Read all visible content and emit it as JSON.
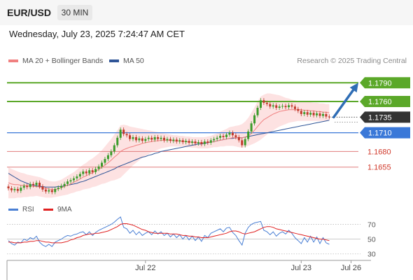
{
  "header": {
    "symbol": "EUR/USD",
    "timeframe": "30 MIN",
    "datetime": "Wednesday, July 23, 2025 7:24:47 AM CET"
  },
  "legend": {
    "items": [
      {
        "label": "MA 20 + Bollinger Bands",
        "color": "#f08080"
      },
      {
        "label": "MA 50",
        "color": "#2f5597"
      }
    ],
    "copyright": "Research © 2025 Trading Central"
  },
  "rsi_legend": {
    "items": [
      {
        "label": "RSI",
        "color": "#4a7fd4"
      },
      {
        "label": "9MA",
        "color": "#e02020"
      }
    ]
  },
  "colors": {
    "resistance": "#5ba829",
    "pivot": "#3a78d8",
    "support": "#e07b7b",
    "current": "#333333",
    "candle_up": "#3b9b2a",
    "candle_down": "#c0392b",
    "band_fill": "#fde2e2",
    "arrow": "#2f6db5"
  },
  "chart_data": [
    {
      "type": "candlestick",
      "y_range": [
        1.1602,
        1.1815
      ],
      "x_labels": [
        {
          "label": "Jul 22",
          "index": 44
        },
        {
          "label": "Jul 23",
          "index": 94
        },
        {
          "label": "Jul 26",
          "index": 110
        }
      ],
      "levels": [
        {
          "value": 1.179,
          "label": "1.1790",
          "kind": "resistance"
        },
        {
          "value": 1.176,
          "label": "1.1760",
          "kind": "resistance"
        },
        {
          "value": 1.1735,
          "label": "1.1735",
          "kind": "current"
        },
        {
          "value": 1.171,
          "label": "1.1710",
          "kind": "pivot"
        },
        {
          "value": 1.168,
          "label": "1.1680",
          "kind": "support"
        },
        {
          "value": 1.1655,
          "label": "1.1655",
          "kind": "support"
        }
      ],
      "close": [
        1.1621,
        1.1618,
        1.162,
        1.1617,
        1.1622,
        1.1625,
        1.1623,
        1.1628,
        1.1626,
        1.163,
        1.1624,
        1.1619,
        1.1616,
        1.1618,
        1.1615,
        1.162,
        1.1622,
        1.1625,
        1.1628,
        1.1632,
        1.1634,
        1.1637,
        1.164,
        1.1644,
        1.1648,
        1.1645,
        1.165,
        1.1647,
        1.1652,
        1.1656,
        1.1662,
        1.1668,
        1.1674,
        1.168,
        1.169,
        1.1702,
        1.1715,
        1.1708,
        1.1706,
        1.17,
        1.1703,
        1.1698,
        1.1701,
        1.1697,
        1.17,
        1.1702,
        1.1699,
        1.1703,
        1.17,
        1.1702,
        1.1698,
        1.17,
        1.1697,
        1.1699,
        1.1696,
        1.1698,
        1.1695,
        1.1697,
        1.1694,
        1.1696,
        1.1693,
        1.1695,
        1.1692,
        1.1696,
        1.1694,
        1.1698,
        1.17,
        1.1702,
        1.1705,
        1.1703,
        1.1707,
        1.171,
        1.1706,
        1.1703,
        1.1698,
        1.169,
        1.17,
        1.1712,
        1.1725,
        1.1738,
        1.175,
        1.1762,
        1.1758,
        1.1756,
        1.1752,
        1.1754,
        1.175,
        1.1752,
        1.1753,
        1.1751,
        1.1754,
        1.1752,
        1.1748,
        1.1745,
        1.174,
        1.1743,
        1.1739,
        1.1742,
        1.1738,
        1.1741,
        1.1737,
        1.174,
        1.1736,
        1.1735
      ],
      "ma50": [
        1.1645,
        1.1642,
        1.1639,
        1.1636,
        1.1633,
        1.1631,
        1.1629,
        1.1627,
        1.1626,
        1.1625,
        1.1624,
        1.1624,
        1.1623,
        1.1623,
        1.1623,
        1.1623,
        1.1624,
        1.1624,
        1.1625,
        1.1626,
        1.1627,
        1.1628,
        1.1629,
        1.1631,
        1.1632,
        1.1634,
        1.1636,
        1.1638,
        1.164,
        1.1642,
        1.1644,
        1.1646,
        1.1648,
        1.165,
        1.1652,
        1.1655,
        1.1657,
        1.1659,
        1.1661,
        1.1663,
        1.1665,
        1.1667,
        1.1669,
        1.1671,
        1.1672,
        1.1674,
        1.1675,
        1.1677,
        1.1678,
        1.168,
        1.1681,
        1.1682,
        1.1683,
        1.1684,
        1.1685,
        1.1686,
        1.1687,
        1.1688,
        1.1689,
        1.169,
        1.1691,
        1.1692,
        1.1692,
        1.1693,
        1.1694,
        1.1695,
        1.1696,
        1.1697,
        1.1698,
        1.1699,
        1.17,
        1.1701,
        1.1701,
        1.1702,
        1.1702,
        1.1702,
        1.1703,
        1.1704,
        1.1705,
        1.1706,
        1.1707,
        1.1708,
        1.1709,
        1.171,
        1.1711,
        1.1712,
        1.1713,
        1.1714,
        1.1715,
        1.1716,
        1.1717,
        1.1718,
        1.1719,
        1.172,
        1.1721,
        1.1722,
        1.1723,
        1.1724,
        1.1725,
        1.1726,
        1.1727,
        1.1728,
        1.1729,
        1.173
      ],
      "bollinger_upper": [
        1.1655,
        1.1652,
        1.165,
        1.1648,
        1.1646,
        1.1645,
        1.1643,
        1.1642,
        1.1641,
        1.164,
        1.1639,
        1.1637,
        1.1635,
        1.1633,
        1.1632,
        1.1632,
        1.1633,
        1.1635,
        1.1638,
        1.1641,
        1.1644,
        1.1647,
        1.1651,
        1.1655,
        1.1659,
        1.1662,
        1.1666,
        1.1669,
        1.1673,
        1.1677,
        1.1682,
        1.1688,
        1.1694,
        1.17,
        1.1707,
        1.1714,
        1.1722,
        1.1723,
        1.1722,
        1.172,
        1.1719,
        1.1718,
        1.1717,
        1.1716,
        1.1715,
        1.1714,
        1.1713,
        1.1712,
        1.1711,
        1.171,
        1.1709,
        1.1708,
        1.1707,
        1.1706,
        1.1706,
        1.1705,
        1.1705,
        1.1704,
        1.1704,
        1.1703,
        1.1703,
        1.1703,
        1.1703,
        1.1703,
        1.1704,
        1.1705,
        1.1707,
        1.1709,
        1.1712,
        1.1714,
        1.1716,
        1.1719,
        1.172,
        1.1721,
        1.1722,
        1.1724,
        1.1728,
        1.1734,
        1.1742,
        1.1751,
        1.176,
        1.1768,
        1.1771,
        1.1773,
        1.1773,
        1.1772,
        1.1771,
        1.177,
        1.1768,
        1.1766,
        1.1765,
        1.1763,
        1.1762,
        1.1761,
        1.176,
        1.176,
        1.1759,
        1.1759,
        1.1758,
        1.1758,
        1.1757,
        1.1757,
        1.1756,
        1.1756
      ],
      "bollinger_lower": [
        1.1605,
        1.1605,
        1.1605,
        1.1606,
        1.1606,
        1.1607,
        1.1607,
        1.1608,
        1.1608,
        1.1609,
        1.1608,
        1.1607,
        1.1606,
        1.1606,
        1.1606,
        1.1607,
        1.1608,
        1.1609,
        1.161,
        1.1611,
        1.1613,
        1.1614,
        1.1616,
        1.1617,
        1.1619,
        1.162,
        1.1621,
        1.1623,
        1.1624,
        1.1626,
        1.1628,
        1.1629,
        1.1631,
        1.1633,
        1.1634,
        1.1636,
        1.1638,
        1.1643,
        1.1648,
        1.1653,
        1.1658,
        1.1662,
        1.1666,
        1.167,
        1.1673,
        1.1676,
        1.1679,
        1.1681,
        1.1683,
        1.1685,
        1.1686,
        1.1687,
        1.1688,
        1.1688,
        1.1688,
        1.1688,
        1.1688,
        1.1687,
        1.1687,
        1.1686,
        1.1686,
        1.1685,
        1.1685,
        1.1685,
        1.1685,
        1.1686,
        1.1687,
        1.1687,
        1.1688,
        1.1688,
        1.1689,
        1.1689,
        1.1689,
        1.1688,
        1.1687,
        1.1686,
        1.1687,
        1.1689,
        1.1691,
        1.1693,
        1.1696,
        1.1699,
        1.1703,
        1.1707,
        1.1711,
        1.1714,
        1.1717,
        1.172,
        1.1722,
        1.1724,
        1.1726,
        1.1727,
        1.1728,
        1.1729,
        1.1729,
        1.1729,
        1.1729,
        1.1729,
        1.1729,
        1.1729,
        1.1729,
        1.1729,
        1.1729,
        1.1729
      ],
      "ma20": [
        1.163,
        1.1628,
        1.1627,
        1.1627,
        1.1626,
        1.1626,
        1.1625,
        1.1625,
        1.1624,
        1.1624,
        1.1623,
        1.1622,
        1.1621,
        1.162,
        1.1619,
        1.1619,
        1.162,
        1.1622,
        1.1624,
        1.1626,
        1.1628,
        1.1631,
        1.1633,
        1.1636,
        1.1639,
        1.1641,
        1.1644,
        1.1646,
        1.1649,
        1.1651,
        1.1655,
        1.1658,
        1.1662,
        1.1666,
        1.1671,
        1.1675,
        1.168,
        1.1683,
        1.1685,
        1.1687,
        1.1688,
        1.169,
        1.1691,
        1.1693,
        1.1694,
        1.1695,
        1.1696,
        1.1697,
        1.1697,
        1.1698,
        1.1698,
        1.1698,
        1.1698,
        1.1697,
        1.1697,
        1.1697,
        1.1696,
        1.1696,
        1.1695,
        1.1695,
        1.1694,
        1.1694,
        1.1694,
        1.1694,
        1.1695,
        1.1695,
        1.1696,
        1.1697,
        1.1698,
        1.1699,
        1.17,
        1.1701,
        1.1702,
        1.1702,
        1.1702,
        1.1702,
        1.1703,
        1.1705,
        1.1709,
        1.1714,
        1.172,
        1.1726,
        1.1731,
        1.1734,
        1.1737,
        1.174,
        1.1742,
        1.1744,
        1.1745,
        1.1746,
        1.1747,
        1.1747,
        1.1747,
        1.1747,
        1.1747,
        1.1746,
        1.1746,
        1.1745,
        1.1745,
        1.1744,
        1.1744,
        1.1743,
        1.1743,
        1.1742
      ],
      "projection": {
        "from_index": 104,
        "from_value": 1.1735,
        "to_value": 1.179
      }
    },
    {
      "type": "line",
      "y_range": [
        25,
        80
      ],
      "y_ticks": [
        70,
        50,
        30
      ],
      "series": [
        {
          "name": "RSI",
          "color": "#4a7fd4",
          "values": [
            48,
            44,
            42,
            46,
            45,
            50,
            48,
            52,
            50,
            54,
            46,
            42,
            40,
            43,
            40,
            46,
            48,
            50,
            53,
            55,
            54,
            56,
            57,
            59,
            60,
            56,
            60,
            55,
            59,
            62,
            64,
            66,
            68,
            70,
            73,
            77,
            80,
            66,
            64,
            58,
            62,
            56,
            60,
            55,
            58,
            60,
            56,
            61,
            57,
            60,
            55,
            58,
            53,
            57,
            52,
            56,
            50,
            55,
            49,
            54,
            48,
            53,
            47,
            55,
            52,
            58,
            60,
            62,
            64,
            60,
            65,
            66,
            59,
            55,
            48,
            42,
            58,
            66,
            70,
            72,
            73,
            74,
            62,
            60,
            56,
            60,
            54,
            58,
            60,
            57,
            62,
            58,
            52,
            48,
            44,
            52,
            46,
            54,
            46,
            53,
            44,
            52,
            45,
            43
          ]
        },
        {
          "name": "9MA",
          "color": "#e02020",
          "values": [
            46,
            46,
            45,
            45,
            45,
            46,
            46,
            47,
            47,
            48,
            48,
            47,
            46,
            46,
            45,
            45,
            45,
            45,
            46,
            47,
            49,
            50,
            52,
            53,
            55,
            56,
            57,
            57,
            58,
            58,
            59,
            60,
            61,
            63,
            65,
            67,
            70,
            71,
            71,
            70,
            69,
            67,
            65,
            63,
            62,
            60,
            59,
            58,
            58,
            58,
            58,
            58,
            57,
            57,
            57,
            56,
            55,
            55,
            54,
            54,
            53,
            53,
            52,
            52,
            52,
            53,
            54,
            55,
            56,
            57,
            58,
            60,
            61,
            61,
            60,
            58,
            57,
            58,
            59,
            60,
            62,
            64,
            66,
            67,
            67,
            66,
            64,
            63,
            62,
            61,
            60,
            59,
            58,
            57,
            56,
            55,
            54,
            53,
            52,
            51,
            50,
            50,
            49,
            48
          ]
        }
      ]
    }
  ]
}
